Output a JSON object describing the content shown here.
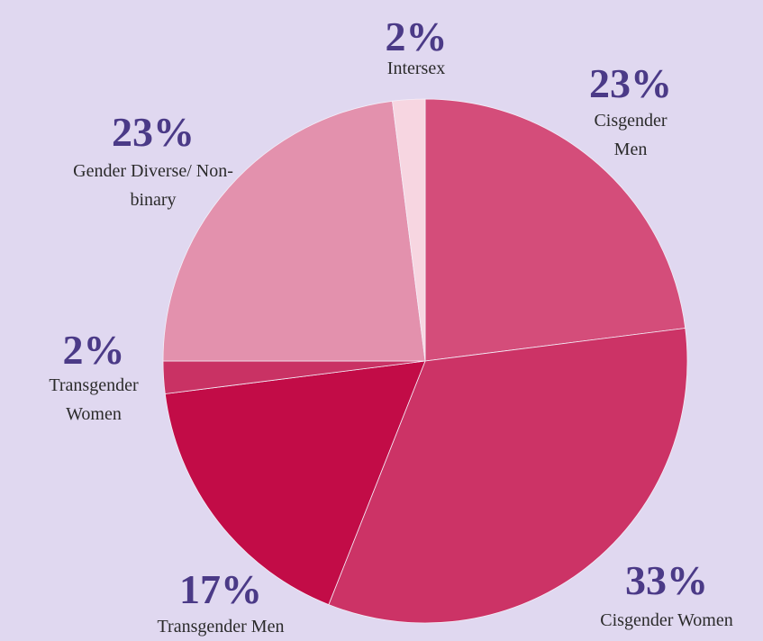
{
  "chart_data": {
    "type": "pie",
    "categories": [
      "Cisgender Men",
      "Cisgender Women",
      "Transgender Men",
      "Transgender Women",
      "Gender Diverse/ Non-binary",
      "Intersex"
    ],
    "values": [
      23,
      33,
      17,
      2,
      23,
      2
    ],
    "value_labels": [
      "23%",
      "33%",
      "17%",
      "2%",
      "23%",
      "2%"
    ],
    "colors": [
      "#d44d7a",
      "#cc3366",
      "#c20c47",
      "#c93264",
      "#e391ad",
      "#f7d6e1"
    ]
  }
}
